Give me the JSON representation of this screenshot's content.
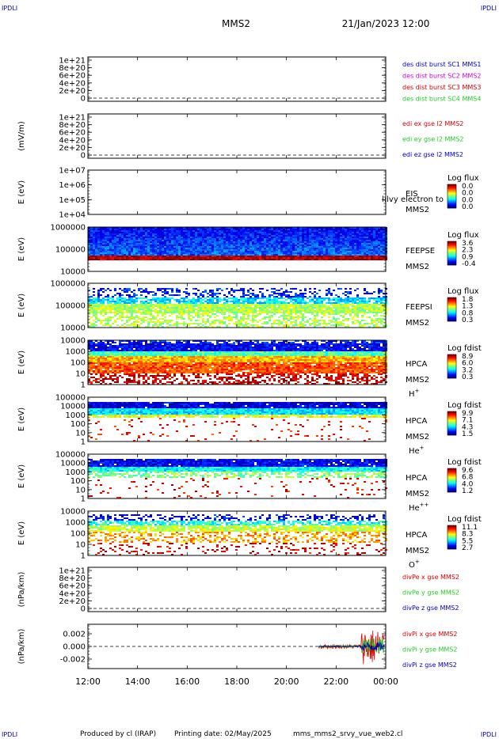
{
  "header": {
    "corner_tl": "IPDLI",
    "corner_tr": "IPDLI",
    "corner_bl": "IPDLI",
    "corner_br": "IPDLI",
    "mission": "MMS2",
    "datetime": "21/Jan/2023 12:00"
  },
  "footer": {
    "produced_by": "Produced by cl (IRAP)",
    "printing_date": "Printing date: 02/May/2025",
    "filename": "mms_mms2_srvy_vue_web2.cl"
  },
  "colors": {
    "blue": "#0000cc",
    "magenta": "#cc00cc",
    "red": "#dd0000",
    "green": "#22cc22"
  },
  "chart_data": [
    {
      "type": "line",
      "ylabel": "",
      "ytick_labels": [
        "1e+21",
        "8e+20",
        "6e+20",
        "4e+20",
        "2e+20",
        "0"
      ],
      "legend": [
        {
          "label": "des dist burst SC1 MMS1",
          "color": "#0000cc"
        },
        {
          "label": "des dist burst SC2 MMS2",
          "color": "#cc00cc"
        },
        {
          "label": "des dist burst SC3 MMS3",
          "color": "#dd0000"
        },
        {
          "label": "des dist burst SC4 MMS4",
          "color": "#22cc22"
        }
      ],
      "zero_line": true
    },
    {
      "type": "line",
      "ylabel": "(mV/m)",
      "ytick_labels": [
        "1e+21",
        "8e+20",
        "6e+20",
        "4e+20",
        "2e+20",
        "0"
      ],
      "legend": [
        {
          "label": "edi ex gse l2 MMS2",
          "color": "#dd0000"
        },
        {
          "label": "edi ey gse l2 MMS2",
          "color": "#22cc22"
        },
        {
          "label": "edi ez gse l2 MMS2",
          "color": "#0000cc"
        }
      ],
      "zero_line": true
    },
    {
      "type": "heatmap",
      "ylabel": "E (eV)",
      "ytick_labels": [
        "1e+07",
        "1e+06",
        "1e+05",
        "1e+04"
      ],
      "instrument": "EIS",
      "overlay_text": "l:lvy electron to",
      "spacecraft": "MMS2",
      "species": "",
      "colorbar_title": "Log flux",
      "colorbar_ticks": [
        "0.0",
        "0.0",
        "0.0",
        "0.0"
      ],
      "pattern": "empty"
    },
    {
      "type": "heatmap",
      "ylabel": "E (eV)",
      "ytick_labels": [
        "1000000",
        "100000",
        "10000"
      ],
      "instrument": "FEEPSE",
      "spacecraft": "MMS2",
      "species": "",
      "colorbar_title": "Log flux",
      "colorbar_ticks": [
        "3.6",
        "2.3",
        "0.9",
        "-0.4"
      ],
      "pattern": "feepse"
    },
    {
      "type": "heatmap",
      "ylabel": "E (eV)",
      "ytick_labels": [
        "1000000",
        "100000",
        "10000"
      ],
      "instrument": "FEEPSI",
      "spacecraft": "MMS2",
      "species": "",
      "colorbar_title": "Log flux",
      "colorbar_ticks": [
        "1.8",
        "1.3",
        "0.8",
        "0.3"
      ],
      "pattern": "feepsi"
    },
    {
      "type": "heatmap",
      "ylabel": "E (eV)",
      "ytick_labels": [
        "10000",
        "1000",
        "100",
        "10",
        "1"
      ],
      "instrument": "HPCA",
      "spacecraft": "MMS2",
      "species": "H",
      "species_sup": "+",
      "colorbar_title": "Log fdist",
      "colorbar_ticks": [
        "8.9",
        "6.0",
        "3.2",
        "0.3"
      ],
      "pattern": "hplus"
    },
    {
      "type": "heatmap",
      "ylabel": "E (eV)",
      "ytick_labels": [
        "100000",
        "10000",
        "1000",
        "100",
        "10",
        "1"
      ],
      "instrument": "HPCA",
      "spacecraft": "MMS2",
      "species": "He",
      "species_sup": "+",
      "colorbar_title": "Log fdist",
      "colorbar_ticks": [
        "9.9",
        "7.1",
        "4.3",
        "1.5"
      ],
      "pattern": "heplus"
    },
    {
      "type": "heatmap",
      "ylabel": "E (eV)",
      "ytick_labels": [
        "100000",
        "10000",
        "1000",
        "100",
        "10",
        "1"
      ],
      "instrument": "HPCA",
      "spacecraft": "MMS2",
      "species": "He",
      "species_sup": "++",
      "colorbar_title": "Log fdist",
      "colorbar_ticks": [
        "9.6",
        "6.8",
        "4.0",
        "1.2"
      ],
      "pattern": "heplusplus"
    },
    {
      "type": "heatmap",
      "ylabel": "E (eV)",
      "ytick_labels": [
        "10000",
        "1000",
        "100",
        "10",
        "1"
      ],
      "instrument": "HPCA",
      "spacecraft": "MMS2",
      "species": "O",
      "species_sup": "+",
      "colorbar_title": "Log fdist",
      "colorbar_ticks": [
        "11.1",
        "8.3",
        "5.5",
        "2.7"
      ],
      "pattern": "oplus"
    },
    {
      "type": "line",
      "ylabel": "(nPa/km)",
      "ytick_labels": [
        "1e+21",
        "8e+20",
        "6e+20",
        "4e+20",
        "2e+20",
        "0"
      ],
      "legend": [
        {
          "label": "divPe x gse MMS2",
          "color": "#dd0000"
        },
        {
          "label": "divPe y gse MMS2",
          "color": "#22cc22"
        },
        {
          "label": "divPe z gse MMS2",
          "color": "#0000cc"
        }
      ],
      "zero_line": true
    },
    {
      "type": "line",
      "ylabel": "(nPa/km)",
      "ytick_labels": [
        "0.002",
        "0.000",
        "-0.002"
      ],
      "ylim": [
        -0.0035,
        0.0035
      ],
      "legend": [
        {
          "label": "divPi x gse MMS2",
          "color": "#dd0000"
        },
        {
          "label": "divPi y gse MMS2",
          "color": "#22cc22"
        },
        {
          "label": "divPi z gse MMS2",
          "color": "#0000cc"
        }
      ],
      "zero_line": true,
      "data_start_hour": 21.3
    }
  ],
  "x_axis": {
    "tick_labels": [
      "12:00",
      "14:00",
      "16:00",
      "18:00",
      "20:00",
      "22:00",
      "00:00"
    ]
  }
}
